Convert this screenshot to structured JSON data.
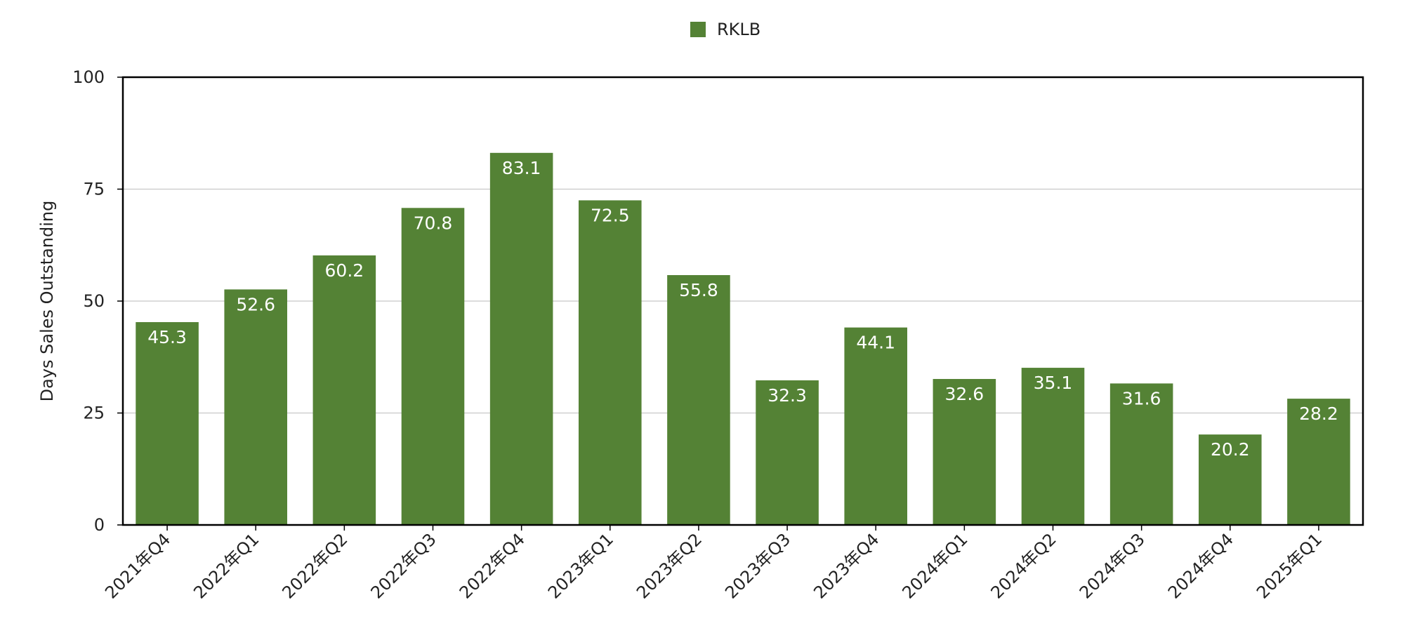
{
  "chart_data": {
    "type": "bar",
    "title": "",
    "xlabel": "",
    "ylabel": "Days Sales Outstanding",
    "ylim": [
      0,
      100
    ],
    "yticks": [
      0,
      25,
      50,
      75,
      100
    ],
    "grid": true,
    "legend_position": "top-center",
    "categories": [
      "2021年Q4",
      "2022年Q1",
      "2022年Q2",
      "2022年Q3",
      "2022年Q4",
      "2023年Q1",
      "2023年Q2",
      "2023年Q3",
      "2023年Q4",
      "2024年Q1",
      "2024年Q2",
      "2024年Q3",
      "2024年Q4",
      "2025年Q1"
    ],
    "series": [
      {
        "name": "RKLB",
        "color": "#548235",
        "values": [
          45.3,
          52.6,
          60.2,
          70.8,
          83.1,
          72.5,
          55.8,
          32.3,
          44.1,
          32.6,
          35.1,
          31.6,
          20.2,
          28.2
        ]
      }
    ]
  }
}
